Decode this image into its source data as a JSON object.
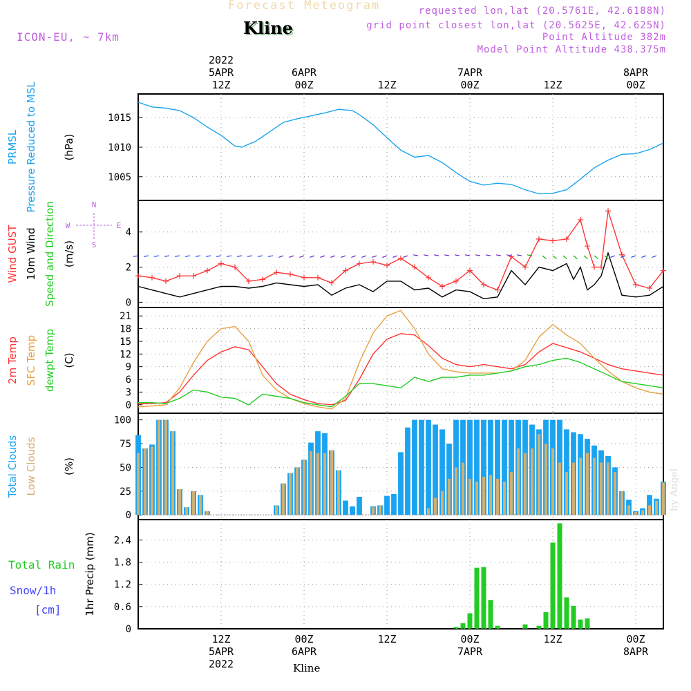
{
  "header": {
    "title": "Forecast Meteogram",
    "station": "Kline",
    "model": "ICON-EU, ~ 7km",
    "info": [
      "requested lon,lat (20.5761E, 42.6188N)",
      "grid point closest lon,lat (20.5625E, 42.625N)",
      "Point Altitude 382m",
      "Model Point Altitude 438.375m"
    ],
    "credit": "by Angel",
    "footer": "Kline"
  },
  "colors": {
    "title": "#f0d8a8",
    "station_shadow": "#8dbb8d",
    "header_text": "#c060e0",
    "credit": "#dddddd",
    "pressure": "#1aa3f0",
    "gust": "#ff3333",
    "wind": "#000000",
    "wind_arrows": "#00aa00",
    "temp2m": "#ff3333",
    "sfc_temp": "#e8a040",
    "dewpt": "#22cc22",
    "total_clouds": "#1aa3f0",
    "low_clouds": "#d4b070",
    "rain": "#22cc22",
    "snow": "#4444ff"
  },
  "time_axis": {
    "top_labels": [
      {
        "t": 12,
        "lines": [
          "2022",
          "5APR",
          "12Z"
        ]
      },
      {
        "t": 24,
        "lines": [
          "6APR",
          "00Z"
        ]
      },
      {
        "t": 36,
        "lines": [
          "12Z"
        ]
      },
      {
        "t": 48,
        "lines": [
          "7APR",
          "00Z"
        ]
      },
      {
        "t": 60,
        "lines": [
          "12Z"
        ]
      },
      {
        "t": 72,
        "lines": [
          "8APR",
          "00Z"
        ]
      }
    ],
    "bottom_labels": [
      {
        "t": 12,
        "lines": [
          "12Z",
          "5APR",
          "2022"
        ]
      },
      {
        "t": 24,
        "lines": [
          "00Z",
          "6APR"
        ]
      },
      {
        "t": 36,
        "lines": [
          "12Z"
        ]
      },
      {
        "t": 48,
        "lines": [
          "00Z",
          "7APR"
        ]
      },
      {
        "t": 60,
        "lines": [
          "12Z"
        ]
      },
      {
        "t": 72,
        "lines": [
          "00Z",
          "8APR"
        ]
      }
    ]
  },
  "chart_data": [
    {
      "type": "line",
      "ylabel_lines": [
        [
          "PRMSL"
        ],
        [
          "Pressure Reduced to MSL"
        ],
        [
          "(hPa)"
        ]
      ],
      "yticks": [
        1005,
        1010,
        1015
      ],
      "ylim": [
        1001,
        1019
      ],
      "series": [
        {
          "name": "PRMSL",
          "x": [
            0,
            2,
            4,
            6,
            8,
            10,
            12,
            14,
            15,
            17,
            19,
            21,
            23,
            25,
            27,
            29,
            31,
            32,
            34,
            36,
            38,
            40,
            42,
            44,
            46,
            48,
            50,
            52,
            54,
            56,
            58,
            60,
            62,
            64,
            66,
            68,
            70,
            72,
            74,
            76
          ],
          "values": [
            1017.6,
            1016.8,
            1016.6,
            1016.2,
            1015,
            1013.4,
            1012,
            1010.2,
            1010,
            1011,
            1012.6,
            1014.2,
            1014.8,
            1015.3,
            1015.8,
            1016.4,
            1016.2,
            1015.5,
            1013.8,
            1011.6,
            1009.5,
            1008.3,
            1008.6,
            1007.4,
            1005.7,
            1004.2,
            1003.6,
            1003.9,
            1003.7,
            1002.8,
            1002.1,
            1002.2,
            1002.8,
            1004.6,
            1006.5,
            1007.8,
            1008.8,
            1008.9,
            1009.6,
            1010.7
          ]
        }
      ]
    },
    {
      "type": "line",
      "ylabel_lines": [
        [
          "Wind GUST"
        ],
        [
          "10m Wind"
        ],
        [
          "Speed and Direction"
        ],
        [
          "(m/s)"
        ]
      ],
      "compass": [
        "N",
        "W",
        "E",
        "S"
      ],
      "yticks": [
        0,
        2,
        4
      ],
      "ylim": [
        -0.3,
        5.8
      ],
      "series": [
        {
          "name": "Wind GUST",
          "x": [
            0,
            2,
            4,
            6,
            8,
            10,
            12,
            14,
            16,
            18,
            20,
            22,
            24,
            26,
            28,
            30,
            32,
            34,
            36,
            38,
            40,
            42,
            44,
            46,
            48,
            50,
            52,
            54,
            56,
            58,
            60,
            62,
            64,
            65,
            66,
            67,
            68,
            70,
            72,
            74,
            76
          ],
          "values": [
            1.5,
            1.4,
            1.2,
            1.5,
            1.5,
            1.8,
            2.2,
            2,
            1.2,
            1.3,
            1.7,
            1.6,
            1.4,
            1.4,
            1.1,
            1.8,
            2.2,
            2.3,
            2.1,
            2.5,
            2,
            1.4,
            0.9,
            1.2,
            1.8,
            1,
            0.7,
            2.6,
            2,
            3.6,
            3.5,
            3.6,
            4.7,
            3.2,
            2,
            2,
            5.2,
            2.7,
            1,
            0.8,
            1.8
          ]
        },
        {
          "name": "10m Wind",
          "x": [
            0,
            2,
            4,
            6,
            8,
            10,
            12,
            14,
            16,
            18,
            20,
            22,
            24,
            26,
            28,
            30,
            32,
            34,
            36,
            38,
            40,
            42,
            44,
            46,
            48,
            50,
            52,
            54,
            56,
            58,
            60,
            62,
            63,
            64,
            65,
            66,
            67,
            68,
            70,
            72,
            74,
            76
          ],
          "values": [
            0.9,
            0.7,
            0.5,
            0.3,
            0.5,
            0.7,
            0.9,
            0.9,
            0.8,
            0.9,
            1.1,
            1,
            0.9,
            1,
            0.4,
            0.8,
            1,
            0.6,
            1.2,
            1.2,
            0.7,
            0.8,
            0.3,
            0.7,
            0.6,
            0.2,
            0.3,
            1.8,
            1,
            2,
            1.8,
            2.2,
            1.3,
            2,
            0.7,
            1,
            1.5,
            2.8,
            0.4,
            0.3,
            0.4,
            0.9
          ]
        }
      ]
    },
    {
      "type": "line",
      "ylabel_lines": [
        [
          "2m Temp"
        ],
        [
          "SFC Temp"
        ],
        [
          "dewpt Temp"
        ],
        [
          "(C)"
        ]
      ],
      "yticks": [
        0,
        3,
        6,
        9,
        12,
        15,
        18,
        21
      ],
      "ylim": [
        -2,
        23
      ],
      "series": [
        {
          "name": "2m Temp",
          "x": [
            0,
            2,
            4,
            6,
            8,
            10,
            12,
            14,
            16,
            18,
            20,
            22,
            24,
            26,
            28,
            30,
            32,
            34,
            36,
            38,
            40,
            42,
            44,
            46,
            48,
            50,
            52,
            54,
            56,
            58,
            60,
            62,
            64,
            66,
            68,
            70,
            72,
            74,
            76
          ],
          "values": [
            0.2,
            0.3,
            0.5,
            3,
            7,
            10.5,
            12.5,
            13.7,
            13,
            9,
            5,
            2.5,
            1.2,
            0.3,
            0,
            1,
            6,
            12,
            15.5,
            16.8,
            16.5,
            14,
            11,
            9.5,
            9,
            9.5,
            9,
            8.5,
            9.5,
            12.5,
            14.5,
            13.5,
            12.5,
            11,
            9.5,
            8.5,
            8,
            7.5,
            7
          ]
        },
        {
          "name": "SFC Temp",
          "x": [
            0,
            2,
            4,
            6,
            8,
            10,
            12,
            14,
            16,
            18,
            20,
            22,
            24,
            26,
            28,
            30,
            32,
            34,
            36,
            38,
            40,
            42,
            44,
            46,
            48,
            50,
            52,
            54,
            56,
            58,
            60,
            62,
            64,
            66,
            68,
            70,
            72,
            74,
            76
          ],
          "values": [
            -0.5,
            -0.3,
            0,
            4,
            10,
            15,
            18,
            18.5,
            15,
            7,
            3.5,
            1.5,
            0.3,
            -0.5,
            -1,
            1.5,
            10,
            17,
            21,
            22.3,
            18,
            12,
            8.5,
            7.8,
            7.5,
            7.5,
            7.5,
            8,
            10.5,
            16,
            19,
            16.5,
            14.5,
            11,
            8,
            5.5,
            4,
            3,
            2.5
          ]
        },
        {
          "name": "dewpt Temp",
          "x": [
            0,
            2,
            4,
            6,
            8,
            10,
            12,
            14,
            16,
            18,
            20,
            22,
            24,
            26,
            28,
            30,
            32,
            34,
            36,
            38,
            40,
            42,
            44,
            46,
            48,
            50,
            52,
            54,
            56,
            58,
            60,
            62,
            64,
            66,
            68,
            70,
            72,
            74,
            76
          ],
          "values": [
            0.5,
            0.5,
            0.3,
            1.5,
            3.5,
            3,
            1.8,
            1.5,
            0,
            2.5,
            2,
            1.5,
            0.5,
            0,
            -0.5,
            2,
            5,
            5,
            4.5,
            4,
            6.5,
            5.5,
            6.5,
            6.5,
            7,
            7,
            7.5,
            8,
            9,
            9.5,
            10.5,
            11,
            10,
            8.5,
            7,
            5.5,
            5,
            4.5,
            4
          ]
        }
      ]
    },
    {
      "type": "bar",
      "ylabel_lines": [
        [
          "Total Clouds"
        ],
        [
          "Low Clouds"
        ],
        [
          "(%)"
        ]
      ],
      "yticks": [
        0,
        25,
        50,
        75,
        100
      ],
      "ylim": [
        -5,
        107
      ],
      "x": [
        0,
        1,
        2,
        3,
        4,
        5,
        6,
        7,
        8,
        9,
        10,
        11,
        12,
        13,
        14,
        15,
        16,
        17,
        18,
        19,
        20,
        21,
        22,
        23,
        24,
        25,
        26,
        27,
        28,
        29,
        30,
        31,
        32,
        33,
        34,
        35,
        36,
        37,
        38,
        39,
        40,
        41,
        42,
        43,
        44,
        45,
        46,
        47,
        48,
        49,
        50,
        51,
        52,
        53,
        54,
        55,
        56,
        57,
        58,
        59,
        60,
        61,
        62,
        63,
        64,
        65,
        66,
        67,
        68,
        69,
        70,
        71,
        72,
        73,
        74,
        75,
        76
      ],
      "series": [
        {
          "name": "Total Clouds",
          "values": [
            84,
            70,
            74,
            100,
            100,
            88,
            27,
            8,
            25,
            21,
            4,
            0,
            0,
            0,
            0,
            0,
            0,
            0,
            0,
            0,
            10,
            33,
            44,
            50,
            58,
            76,
            88,
            86,
            68,
            47,
            15,
            9,
            19,
            0,
            9,
            10,
            20,
            22,
            66,
            92,
            100,
            100,
            100,
            95,
            90,
            75,
            100,
            100,
            100,
            100,
            100,
            100,
            100,
            100,
            100,
            100,
            100,
            95,
            90,
            100,
            100,
            100,
            90,
            87,
            85,
            80,
            73,
            68,
            62,
            50,
            25,
            16,
            4,
            7,
            21,
            17,
            35
          ]
        },
        {
          "name": "Low Clouds",
          "values": [
            65,
            70,
            72,
            100,
            100,
            88,
            27,
            8,
            25,
            21,
            4,
            0,
            0,
            0,
            0,
            0,
            0,
            0,
            0,
            0,
            10,
            33,
            44,
            50,
            58,
            67,
            65,
            65,
            68,
            47,
            0,
            0,
            0,
            0,
            8,
            10,
            0,
            0,
            0,
            0,
            0,
            0,
            7,
            18,
            25,
            38,
            50,
            55,
            38,
            35,
            40,
            42,
            38,
            35,
            45,
            70,
            65,
            70,
            85,
            75,
            70,
            55,
            45,
            55,
            60,
            65,
            60,
            55,
            55,
            45,
            25,
            10,
            3,
            5,
            10,
            15,
            34
          ]
        }
      ]
    },
    {
      "type": "bar",
      "ylabel_lines": [
        [
          "1hr Precip (mm)"
        ]
      ],
      "side_labels": [
        "Total Rain",
        "Snow/1h",
        "[cm]"
      ],
      "yticks": [
        0,
        0.6,
        1.2,
        1.8,
        2.4
      ],
      "ylim": [
        0,
        2.95
      ],
      "series": [
        {
          "name": "Total Rain",
          "x": [
            46,
            47,
            48,
            49,
            50,
            51,
            52,
            56,
            58,
            59,
            60,
            61,
            62,
            63,
            64,
            65
          ],
          "values": [
            0.05,
            0.15,
            0.42,
            1.65,
            1.67,
            0.78,
            0.08,
            0.12,
            0.08,
            0.45,
            2.33,
            2.85,
            0.85,
            0.62,
            0.25,
            0.28
          ]
        }
      ]
    }
  ]
}
